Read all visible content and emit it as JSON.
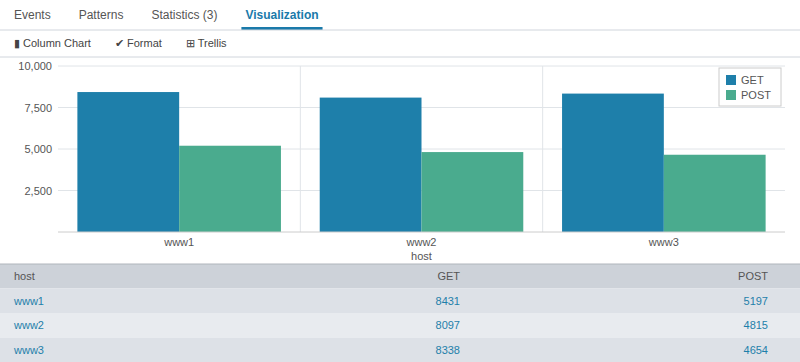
{
  "tabs": {
    "labels": [
      "Events",
      "Patterns",
      "Statistics (3)",
      "Visualization"
    ],
    "active": "Visualization"
  },
  "toolbar": [
    "▮ Column Chart",
    "✔ Format",
    "⊞ Trellis"
  ],
  "chart_data": {
    "type": "bar",
    "xlabel": "host",
    "categories": [
      "www1",
      "www2",
      "www3"
    ],
    "series": [
      {
        "name": "GET",
        "color": "#1e7faa",
        "values": [
          8431,
          8097,
          8338
        ]
      },
      {
        "name": "POST",
        "color": "#4aab8e",
        "values": [
          5197,
          4815,
          4654
        ]
      }
    ],
    "ylim": [
      0,
      10000
    ],
    "yticks": [
      {
        "value": 2500,
        "label": "2,500"
      },
      {
        "value": 5000,
        "label": "5,000"
      },
      {
        "value": 7500,
        "label": "7,500"
      },
      {
        "value": 10000,
        "label": "10,000"
      }
    ],
    "grid": true,
    "legend": "upper right"
  },
  "table": {
    "headers": [
      "host",
      "GET",
      "POST"
    ],
    "rows": [
      [
        "www1",
        "8431",
        "5197"
      ],
      [
        "www2",
        "8097",
        "4815"
      ],
      [
        "www3",
        "8338",
        "4654"
      ]
    ]
  }
}
